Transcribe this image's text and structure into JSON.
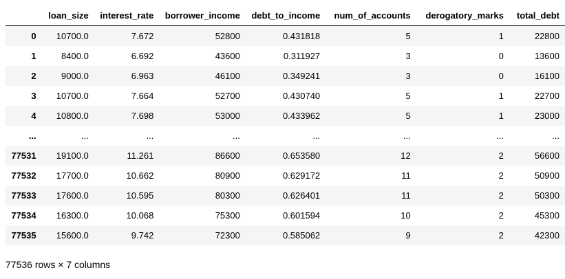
{
  "table": {
    "index_header": "",
    "columns": [
      "loan_size",
      "interest_rate",
      "borrower_income",
      "debt_to_income",
      "num_of_accounts",
      "derogatory_marks",
      "total_debt"
    ],
    "rows": [
      {
        "index": "0",
        "cells": [
          "10700.0",
          "7.672",
          "52800",
          "0.431818",
          "5",
          "1",
          "22800"
        ]
      },
      {
        "index": "1",
        "cells": [
          "8400.0",
          "6.692",
          "43600",
          "0.311927",
          "3",
          "0",
          "13600"
        ]
      },
      {
        "index": "2",
        "cells": [
          "9000.0",
          "6.963",
          "46100",
          "0.349241",
          "3",
          "0",
          "16100"
        ]
      },
      {
        "index": "3",
        "cells": [
          "10700.0",
          "7.664",
          "52700",
          "0.430740",
          "5",
          "1",
          "22700"
        ]
      },
      {
        "index": "4",
        "cells": [
          "10800.0",
          "7.698",
          "53000",
          "0.433962",
          "5",
          "1",
          "23000"
        ]
      },
      {
        "index": "...",
        "cells": [
          "...",
          "...",
          "...",
          "...",
          "...",
          "...",
          "..."
        ]
      },
      {
        "index": "77531",
        "cells": [
          "19100.0",
          "11.261",
          "86600",
          "0.653580",
          "12",
          "2",
          "56600"
        ]
      },
      {
        "index": "77532",
        "cells": [
          "17700.0",
          "10.662",
          "80900",
          "0.629172",
          "11",
          "2",
          "50900"
        ]
      },
      {
        "index": "77533",
        "cells": [
          "17600.0",
          "10.595",
          "80300",
          "0.626401",
          "11",
          "2",
          "50300"
        ]
      },
      {
        "index": "77534",
        "cells": [
          "16300.0",
          "10.068",
          "75300",
          "0.601594",
          "10",
          "2",
          "45300"
        ]
      },
      {
        "index": "77535",
        "cells": [
          "15600.0",
          "9.742",
          "72300",
          "0.585062",
          "9",
          "2",
          "42300"
        ]
      }
    ]
  },
  "shape_note": "77536 rows × 7 columns"
}
